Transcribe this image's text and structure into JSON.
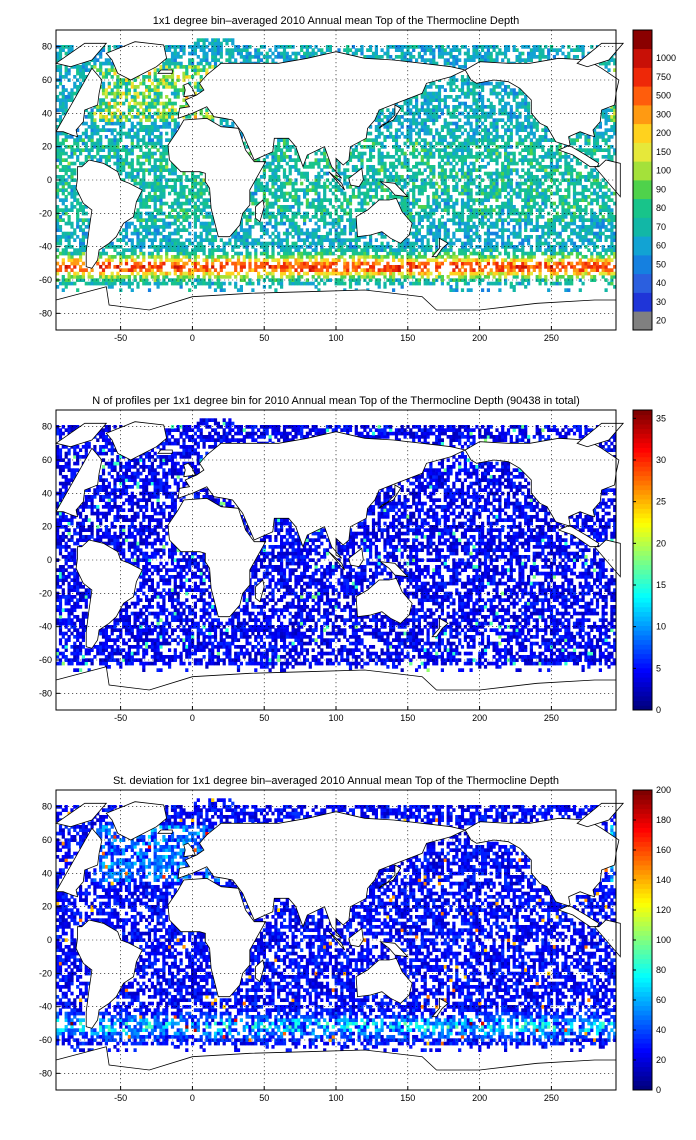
{
  "chart_data": [
    {
      "type": "heatmap",
      "title": "1x1 degree bin–averaged 2010 Annual mean Top of the Thermocline Depth",
      "xlabel": "",
      "ylabel": "",
      "x_ticks": [
        -50,
        0,
        50,
        100,
        150,
        200,
        250
      ],
      "y_ticks": [
        -80,
        -60,
        -40,
        -20,
        0,
        20,
        40,
        60,
        80
      ],
      "xlim": [
        -95,
        295
      ],
      "ylim": [
        -90,
        90
      ],
      "grid": true,
      "colorbar": {
        "scale": "categorical",
        "labels": [
          "20",
          "30",
          "40",
          "50",
          "60",
          "70",
          "80",
          "90",
          "100",
          "150",
          "200",
          "300",
          "500",
          "750",
          "1000"
        ],
        "colors": [
          "#808080",
          "#1f35d8",
          "#2b5fdf",
          "#1580e0",
          "#12a3d3",
          "#12b7a6",
          "#18c48a",
          "#4fd24b",
          "#a4e13a",
          "#e6e83a",
          "#ffd21e",
          "#ff9a12",
          "#ff5d0c",
          "#ee2808",
          "#c81006",
          "#8a0000"
        ]
      },
      "notes_on_pattern": "Dense data over global ocean; Southern Ocean band near -45 to -60 shows highest values (red/orange); tropics mostly blue-green."
    },
    {
      "type": "heatmap",
      "title": "N of profiles per 1x1 degree bin for 2010 Annual mean Top of the Thermocline Depth  (90438 in total)",
      "xlabel": "",
      "ylabel": "",
      "x_ticks": [
        -50,
        0,
        50,
        100,
        150,
        200,
        250
      ],
      "y_ticks": [
        -80,
        -60,
        -40,
        -20,
        0,
        20,
        40,
        60,
        80
      ],
      "xlim": [
        -95,
        295
      ],
      "ylim": [
        -90,
        90
      ],
      "grid": true,
      "colorbar": {
        "scale": "linear",
        "min": 0,
        "max": 36,
        "ticks": [
          0,
          5,
          10,
          15,
          20,
          25,
          30,
          35
        ],
        "colormap": "jet"
      }
    },
    {
      "type": "heatmap",
      "title": "St. deviation for 1x1 degree bin–averaged 2010 Annual mean Top of the Thermocline Depth",
      "xlabel": "",
      "ylabel": "",
      "x_ticks": [
        -50,
        0,
        50,
        100,
        150,
        200,
        250
      ],
      "y_ticks": [
        -80,
        -60,
        -40,
        -20,
        0,
        20,
        40,
        60,
        80
      ],
      "xlim": [
        -95,
        295
      ],
      "ylim": [
        -90,
        90
      ],
      "grid": true,
      "colorbar": {
        "scale": "linear",
        "min": 0,
        "max": 200,
        "ticks": [
          0,
          20,
          40,
          60,
          80,
          100,
          120,
          140,
          160,
          180,
          200
        ],
        "colormap": "jet"
      }
    }
  ]
}
